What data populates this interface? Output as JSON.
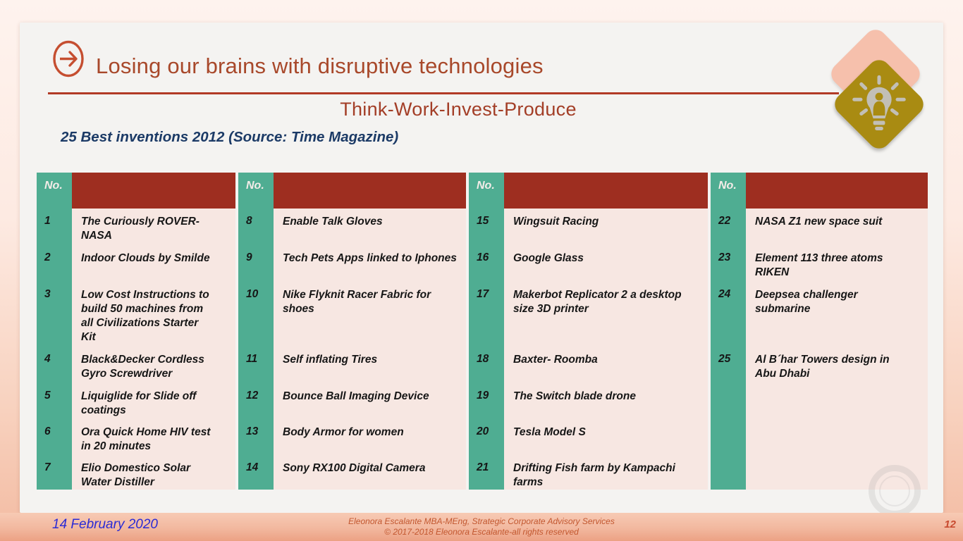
{
  "slide": {
    "title": "Losing our brains with disruptive technologies",
    "subtitle": "Think-Work-Invest-Produce",
    "heading": "25 Best inventions 2012 (Source: Time Magazine)",
    "icons": {
      "title_icon": "arrow-right-circle-icon",
      "corner_icon": "lightbulb-idea-icon"
    },
    "colors": {
      "title_red": "#a8482a",
      "underline_red": "#b23a26",
      "heading_navy": "#1b3a66",
      "table_teal": "#4fad92",
      "table_header_red": "#9e2e20",
      "table_cell_pink": "#f7e7e2",
      "diamond_pink": "#f6c0ac",
      "diamond_gold": "#a98b12",
      "footer_salmon": "#f2b89f",
      "date_blue": "#2b2bd5",
      "credit_red": "#c2572f"
    },
    "table": {
      "no_header": "No.",
      "groups": [
        {
          "items": [
            {
              "no": "1",
              "text": "The Curiously ROVER-\nNASA"
            },
            {
              "no": "2",
              "text": "Indoor Clouds by Smilde"
            },
            {
              "no": "3",
              "text": "Low Cost Instructions to\nbuild 50 machines from\nall Civilizations Starter\nKit"
            },
            {
              "no": "4",
              "text": "Black&Decker Cordless\nGyro Screwdriver"
            },
            {
              "no": "5",
              "text": "Liquiglide for Slide off\ncoatings"
            },
            {
              "no": "6",
              "text": "Ora Quick Home HIV test\nin 20 minutes"
            },
            {
              "no": "7",
              "text": "Elio Domestico Solar\nWater Distiller"
            }
          ]
        },
        {
          "items": [
            {
              "no": "8",
              "text": "Enable Talk Gloves"
            },
            {
              "no": "9",
              "text": "Tech Pets Apps linked to Iphones"
            },
            {
              "no": "10",
              "text": "Nike Flyknit Racer Fabric for\nshoes"
            },
            {
              "no": "11",
              "text": "Self inflating Tires"
            },
            {
              "no": "12",
              "text": "Bounce Ball Imaging Device"
            },
            {
              "no": "13",
              "text": "Body Armor for women"
            },
            {
              "no": "14",
              "text": "Sony RX100 Digital Camera"
            }
          ]
        },
        {
          "items": [
            {
              "no": "15",
              "text": "Wingsuit Racing"
            },
            {
              "no": "16",
              "text": "Google Glass"
            },
            {
              "no": "17",
              "text": "Makerbot Replicator 2 a desktop\nsize 3D printer"
            },
            {
              "no": "18",
              "text": "Baxter- Roomba"
            },
            {
              "no": "19",
              "text": "The Switch blade drone"
            },
            {
              "no": "20",
              "text": "Tesla Model S"
            },
            {
              "no": "21",
              "text": "Drifting Fish farm by Kampachi\nfarms"
            }
          ]
        },
        {
          "items": [
            {
              "no": "22",
              "text": "NASA Z1 new space suit"
            },
            {
              "no": "23",
              "text": "Element 113 three atoms\nRIKEN"
            },
            {
              "no": "24",
              "text": "Deepsea challenger\nsubmarine"
            },
            {
              "no": "25",
              "text": "Al B´har Towers design in\nAbu Dhabi"
            },
            {
              "no": "",
              "text": ""
            },
            {
              "no": "",
              "text": ""
            },
            {
              "no": "",
              "text": ""
            }
          ]
        }
      ]
    },
    "footer": {
      "date": "14 February 2020",
      "credit_line1": "Eleonora Escalante MBA-MEng, Strategic Corporate Advisory Services",
      "credit_line2": "© 2017-2018 Eleonora Escalante-all rights reserved",
      "page_number": "12"
    }
  }
}
